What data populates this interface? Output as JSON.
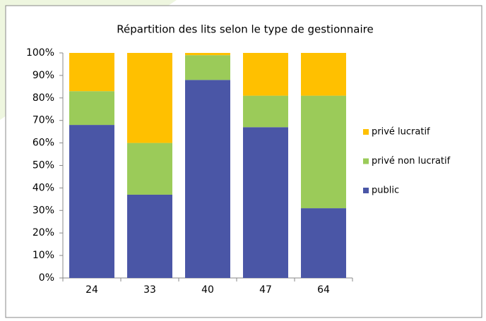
{
  "chart_data": {
    "type": "stacked_bar",
    "title": "Répartition des lits selon le type de gestionnaire",
    "categories": [
      "24",
      "33",
      "40",
      "47",
      "64"
    ],
    "series": [
      {
        "name": "public",
        "color": "#4a56a6",
        "values": [
          68,
          37,
          88,
          67,
          31
        ]
      },
      {
        "name": "privé non lucratif",
        "color": "#9bcb59",
        "values": [
          15,
          23,
          11,
          14,
          50
        ]
      },
      {
        "name": "privé lucratif",
        "color": "#ffc000",
        "values": [
          17,
          40,
          1,
          19,
          19
        ]
      }
    ],
    "ylim": [
      0,
      100
    ],
    "yticks": [
      {
        "value": 0,
        "label": "0%"
      },
      {
        "value": 10,
        "label": "10%"
      },
      {
        "value": 20,
        "label": "20%"
      },
      {
        "value": 30,
        "label": "30%"
      },
      {
        "value": 40,
        "label": "40%"
      },
      {
        "value": 50,
        "label": "50%"
      },
      {
        "value": 60,
        "label": "60%"
      },
      {
        "value": 70,
        "label": "70%"
      },
      {
        "value": 80,
        "label": "80%"
      },
      {
        "value": 90,
        "label": "90%"
      },
      {
        "value": 100,
        "label": "100%"
      }
    ],
    "grid": false,
    "legend": "right"
  }
}
